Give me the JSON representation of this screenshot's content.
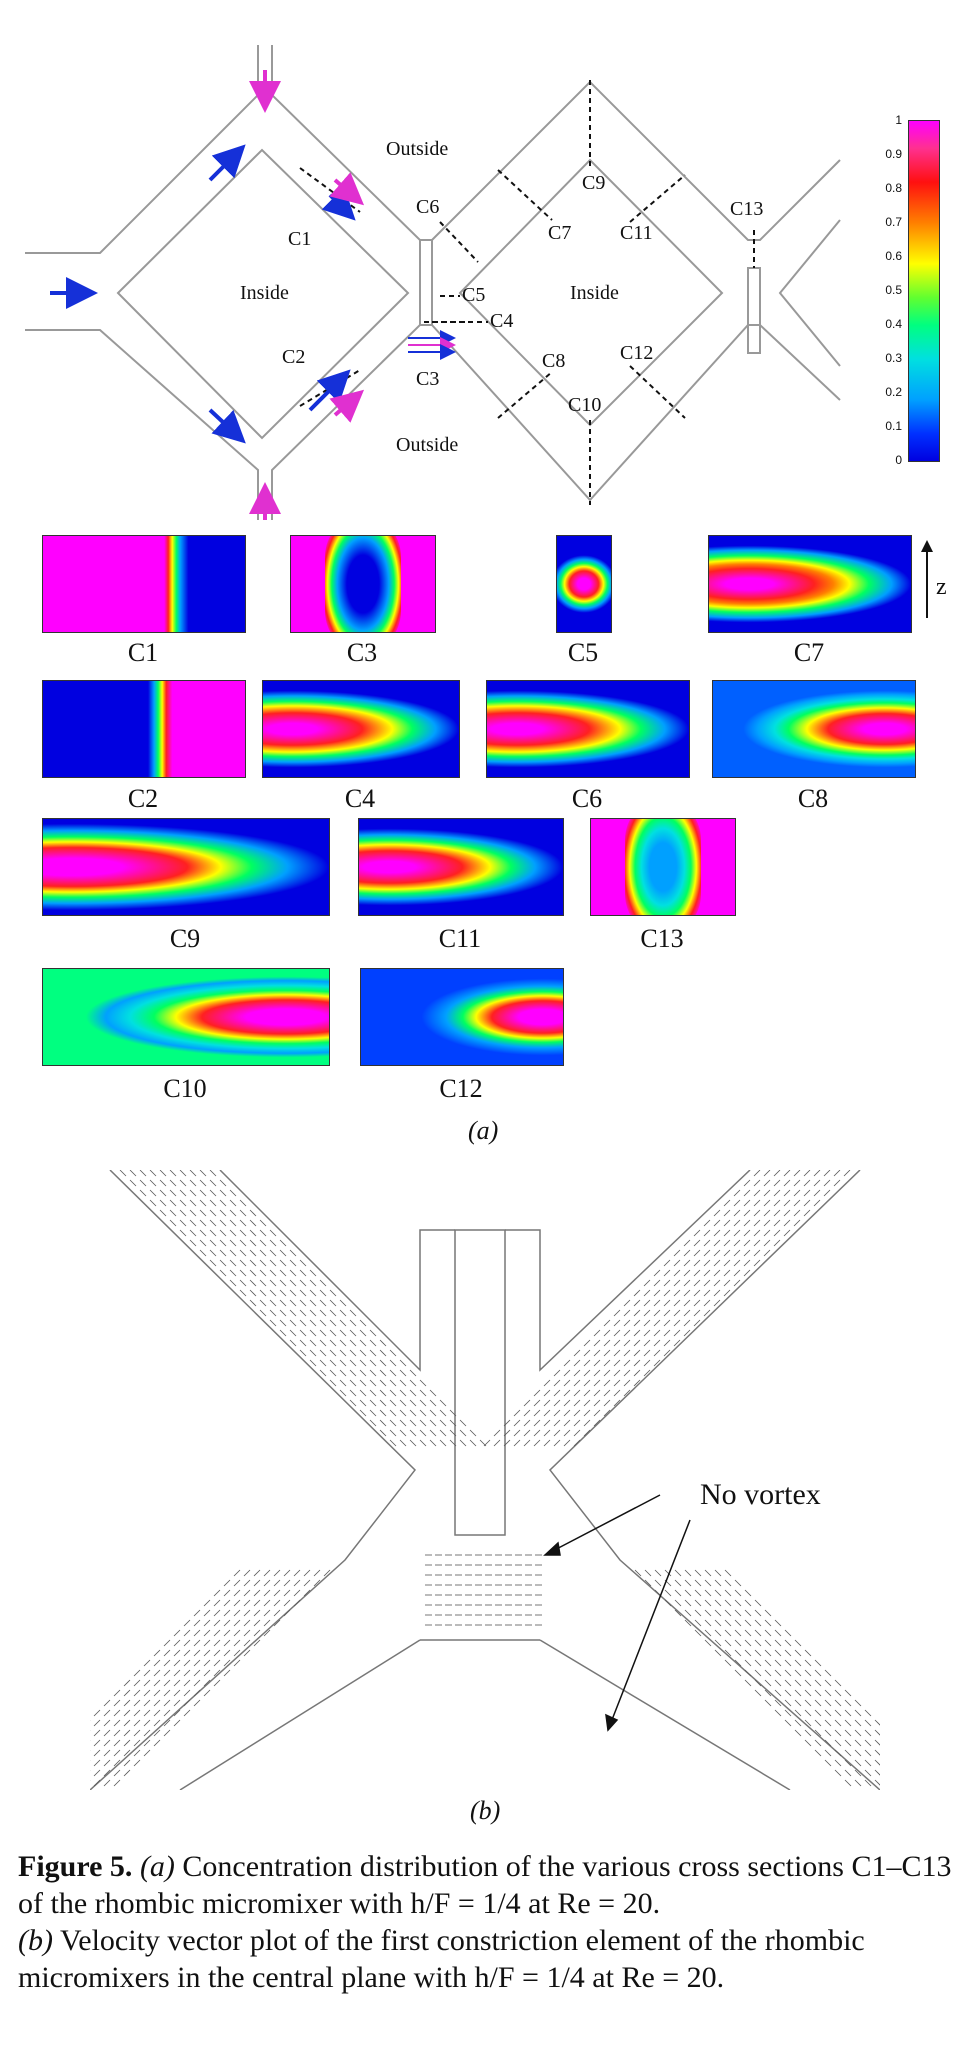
{
  "panel_a": {
    "schematic": {
      "outside_top": "Outside",
      "outside_bottom": "Outside",
      "inside_left": "Inside",
      "inside_right": "Inside",
      "section_labels": [
        "C1",
        "C2",
        "C3",
        "C4",
        "C5",
        "C6",
        "C7",
        "C8",
        "C9",
        "C10",
        "C11",
        "C12",
        "C13"
      ]
    },
    "colorbar": {
      "ticks": [
        "1",
        "0.9",
        "0.8",
        "0.7",
        "0.6",
        "0.5",
        "0.4",
        "0.3",
        "0.2",
        "0.1",
        "0"
      ]
    },
    "z_axis_label": "z",
    "sections": [
      {
        "id": "c1",
        "label": "C1"
      },
      {
        "id": "c3",
        "label": "C3"
      },
      {
        "id": "c5",
        "label": "C5"
      },
      {
        "id": "c7",
        "label": "C7"
      },
      {
        "id": "c2",
        "label": "C2"
      },
      {
        "id": "c4",
        "label": "C4"
      },
      {
        "id": "c6",
        "label": "C6"
      },
      {
        "id": "c8",
        "label": "C8"
      },
      {
        "id": "c9",
        "label": "C9"
      },
      {
        "id": "c11",
        "label": "C11"
      },
      {
        "id": "c13",
        "label": "C13"
      },
      {
        "id": "c10",
        "label": "C10"
      },
      {
        "id": "c12",
        "label": "C12"
      }
    ],
    "label": "(a)"
  },
  "panel_b": {
    "annotation": "No vortex",
    "label": "(b)"
  },
  "caption": {
    "fig_label": "Figure 5.",
    "a_tag": "(a)",
    "a_text": " Concentration distribution of the various cross sections C1–C13 of the rhombic micromixer with h/F = 1/4 at Re = 20.",
    "b_tag": "(b)",
    "b_text": " Velocity vector plot of the first constriction element of the rhombic micromixers in the central plane with h/F = 1/4 at Re = 20."
  }
}
